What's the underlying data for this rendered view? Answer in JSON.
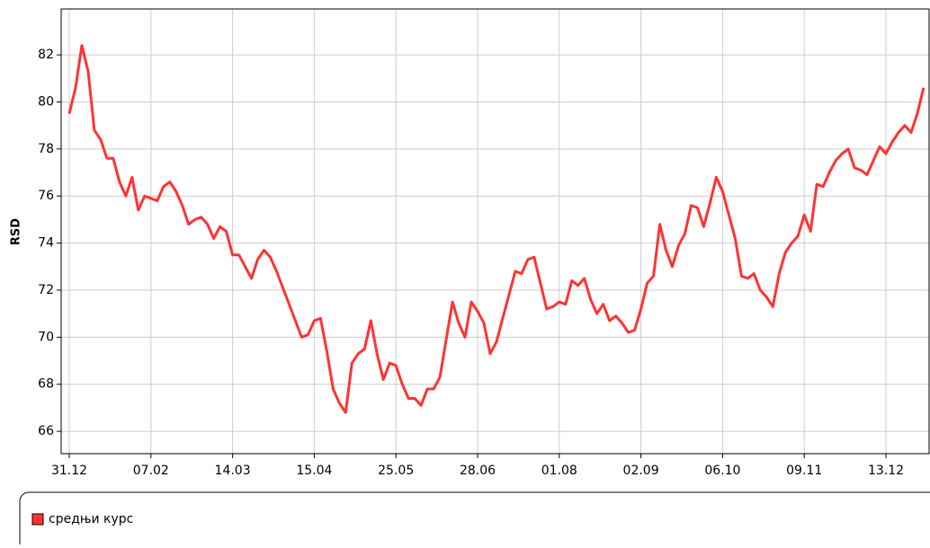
{
  "chart_data": {
    "type": "line",
    "y_label": "RSD",
    "categories": [
      "31.12",
      null,
      null,
      null,
      null,
      null,
      null,
      null,
      null,
      null,
      null,
      null,
      null,
      "07.02",
      null,
      null,
      null,
      null,
      null,
      null,
      null,
      null,
      null,
      null,
      null,
      null,
      "14.03",
      null,
      null,
      null,
      null,
      null,
      null,
      null,
      null,
      null,
      null,
      null,
      null,
      "15.04",
      null,
      null,
      null,
      null,
      null,
      null,
      null,
      null,
      null,
      null,
      null,
      null,
      "25.05",
      null,
      null,
      null,
      null,
      null,
      null,
      null,
      null,
      null,
      null,
      null,
      null,
      "28.06",
      null,
      null,
      null,
      null,
      null,
      null,
      null,
      null,
      null,
      null,
      null,
      null,
      "01.08",
      null,
      null,
      null,
      null,
      null,
      null,
      null,
      null,
      null,
      null,
      null,
      null,
      "02.09",
      null,
      null,
      null,
      null,
      null,
      null,
      null,
      null,
      null,
      null,
      null,
      null,
      "06.10",
      null,
      null,
      null,
      null,
      null,
      null,
      null,
      null,
      null,
      null,
      null,
      null,
      "09.11",
      null,
      null,
      null,
      null,
      null,
      null,
      null,
      null,
      null,
      null,
      null,
      null,
      "13.12",
      null,
      null,
      null,
      null,
      null,
      null
    ],
    "series": [
      {
        "name": "средњи курс",
        "color": "#ff3333",
        "values": [
          79.5,
          80.6,
          82.4,
          81.3,
          78.8,
          78.4,
          77.6,
          77.6,
          76.6,
          76.0,
          76.8,
          75.4,
          76.0,
          75.9,
          75.8,
          76.4,
          76.6,
          76.2,
          75.6,
          74.8,
          75.0,
          75.1,
          74.8,
          74.2,
          74.7,
          74.5,
          73.5,
          73.5,
          73.0,
          72.5,
          73.3,
          73.7,
          73.4,
          72.8,
          72.1,
          71.4,
          70.7,
          70.0,
          70.1,
          70.7,
          70.8,
          69.4,
          67.8,
          67.2,
          66.8,
          68.9,
          69.3,
          69.5,
          70.7,
          69.3,
          68.2,
          68.9,
          68.8,
          68.0,
          67.4,
          67.4,
          67.1,
          67.8,
          67.8,
          68.3,
          69.9,
          71.5,
          70.6,
          70.0,
          71.5,
          71.1,
          70.6,
          69.3,
          69.8,
          70.8,
          71.8,
          72.8,
          72.7,
          73.3,
          73.4,
          72.3,
          71.2,
          71.3,
          71.5,
          71.4,
          72.4,
          72.2,
          72.5,
          71.6,
          71.0,
          71.4,
          70.7,
          70.9,
          70.6,
          70.2,
          70.3,
          71.2,
          72.3,
          72.6,
          74.8,
          73.7,
          73.0,
          73.9,
          74.4,
          75.6,
          75.5,
          74.7,
          75.7,
          76.8,
          76.2,
          75.2,
          74.2,
          72.6,
          72.5,
          72.7,
          72.0,
          71.7,
          71.3,
          72.7,
          73.6,
          74.0,
          74.3,
          75.2,
          74.5,
          76.5,
          76.4,
          77.0,
          77.5,
          77.8,
          78.0,
          77.2,
          77.1,
          76.9,
          77.5,
          78.1,
          77.8,
          78.3,
          78.7,
          79.0,
          78.7,
          79.5,
          80.6
        ]
      }
    ],
    "ylim": [
      65.05,
      83.95
    ],
    "yticks": [
      66,
      68,
      70,
      72,
      74,
      76,
      78,
      80,
      82
    ],
    "grid": true,
    "legend": "bottom-left"
  }
}
